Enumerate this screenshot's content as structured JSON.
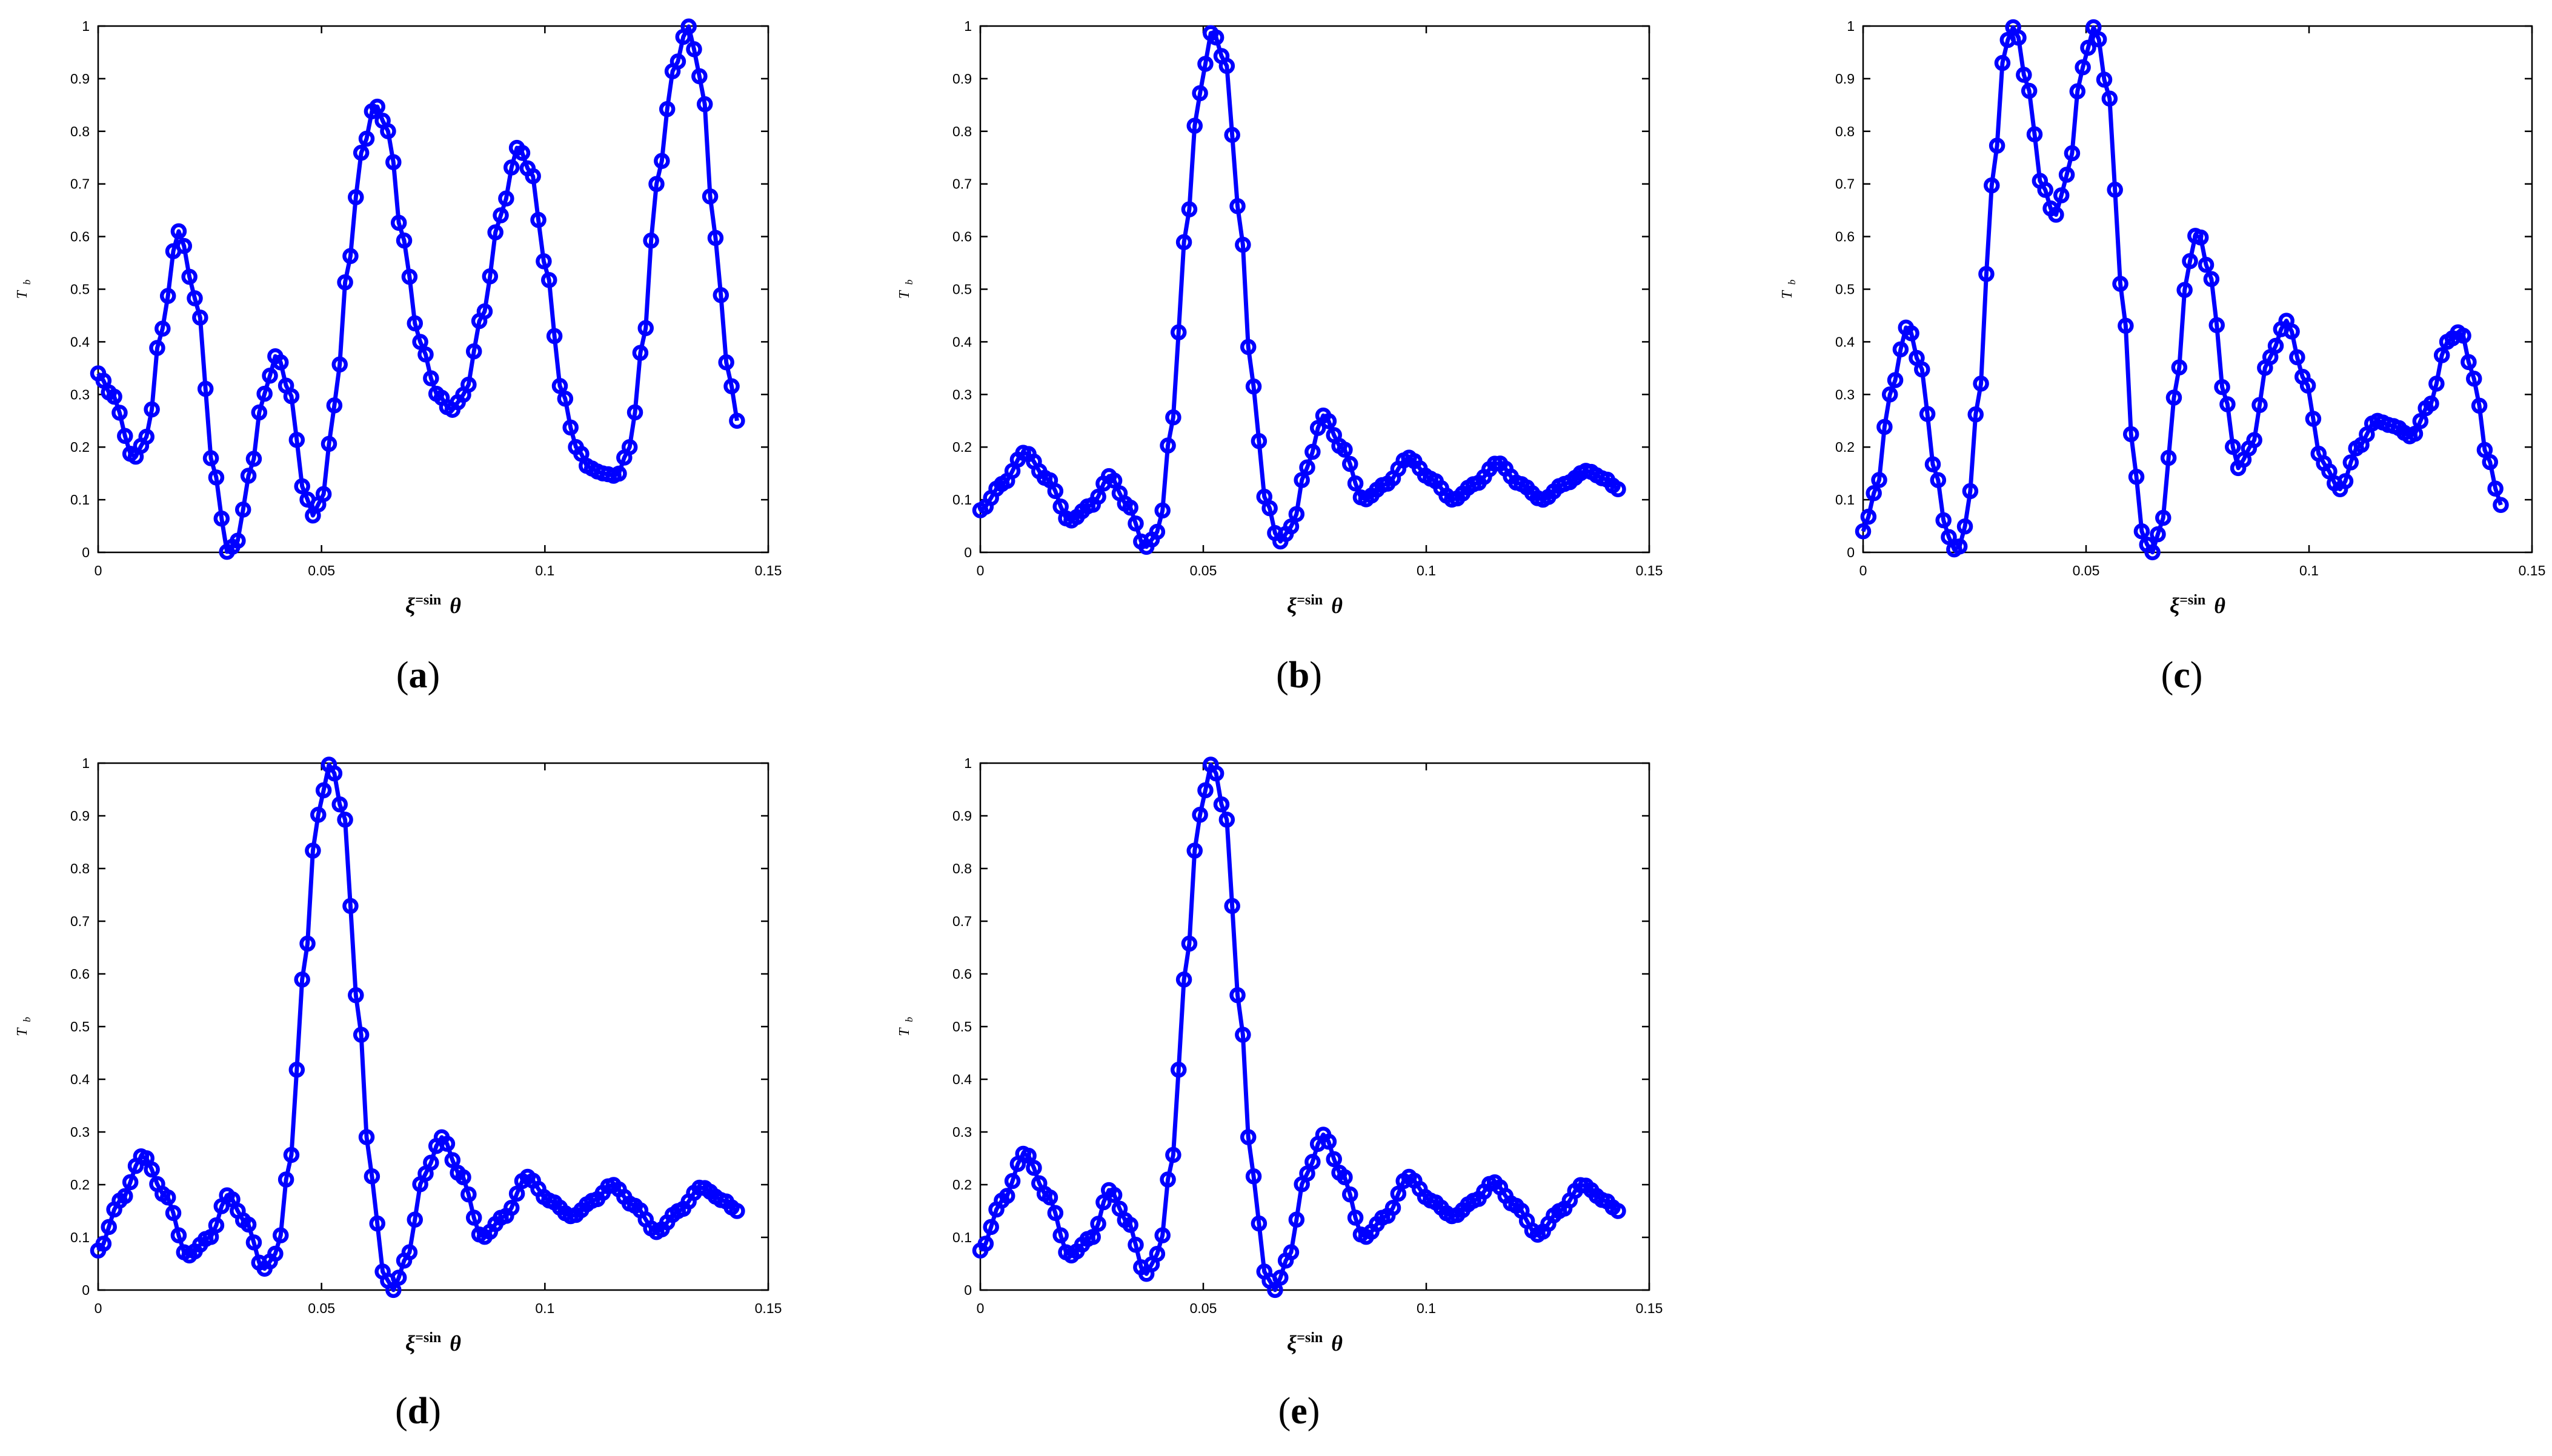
{
  "figure": {
    "panels": [
      {
        "label": "a",
        "xlabel": {
          "symbol": "ξ",
          "sup": "=sin",
          "var": "θ"
        },
        "ylabel": {
          "main": "T",
          "sub": "b"
        }
      },
      {
        "label": "b",
        "xlabel": {
          "symbol": "ξ",
          "sup": "=sin",
          "var": "θ"
        },
        "ylabel": {
          "main": "T",
          "sub": "b"
        }
      },
      {
        "label": "c",
        "xlabel": {
          "symbol": "ξ",
          "sup": "=sin",
          "var": "θ"
        },
        "ylabel": {
          "main": "T",
          "sub": "b"
        }
      },
      {
        "label": "d",
        "xlabel": {
          "symbol": "ξ",
          "sup": "=sin",
          "var": "θ"
        },
        "ylabel": {
          "main": "T",
          "sub": "b"
        }
      },
      {
        "label": "e",
        "xlabel": {
          "symbol": "ξ",
          "sup": "=sin",
          "var": "θ"
        },
        "ylabel": {
          "main": "T",
          "sub": "b"
        }
      }
    ]
  },
  "chart_data": [
    {
      "type": "line",
      "panel": "a",
      "marker": "circle",
      "color": "#0000ff",
      "xlim": [
        0,
        0.15
      ],
      "ylim": [
        0,
        1
      ],
      "xticks": [
        "0",
        "0.05",
        "0.1",
        "0.15"
      ],
      "yticks": [
        "0",
        "0.1",
        "0.2",
        "0.3",
        "0.4",
        "0.5",
        "0.6",
        "0.7",
        "0.8",
        "0.9",
        "1"
      ],
      "x_range": [
        0,
        0.143
      ],
      "points_count": 120,
      "keypoints": [
        [
          0,
          0.34
        ],
        [
          0.003,
          0.3
        ],
        [
          0.008,
          0.18
        ],
        [
          0.011,
          0.22
        ],
        [
          0.014,
          0.42
        ],
        [
          0.018,
          0.61
        ],
        [
          0.022,
          0.48
        ],
        [
          0.026,
          0.15
        ],
        [
          0.029,
          0.0
        ],
        [
          0.031,
          0.02
        ],
        [
          0.034,
          0.15
        ],
        [
          0.037,
          0.3
        ],
        [
          0.04,
          0.375
        ],
        [
          0.043,
          0.3
        ],
        [
          0.046,
          0.12
        ],
        [
          0.048,
          0.07
        ],
        [
          0.05,
          0.1
        ],
        [
          0.053,
          0.28
        ],
        [
          0.056,
          0.55
        ],
        [
          0.059,
          0.76
        ],
        [
          0.062,
          0.85
        ],
        [
          0.065,
          0.8
        ],
        [
          0.068,
          0.6
        ],
        [
          0.072,
          0.4
        ],
        [
          0.076,
          0.3
        ],
        [
          0.079,
          0.27
        ],
        [
          0.082,
          0.3
        ],
        [
          0.086,
          0.45
        ],
        [
          0.09,
          0.64
        ],
        [
          0.094,
          0.77
        ],
        [
          0.097,
          0.72
        ],
        [
          0.1,
          0.55
        ],
        [
          0.104,
          0.3
        ],
        [
          0.107,
          0.2
        ],
        [
          0.11,
          0.16
        ],
        [
          0.113,
          0.15
        ],
        [
          0.116,
          0.145
        ],
        [
          0.119,
          0.2
        ],
        [
          0.122,
          0.4
        ],
        [
          0.125,
          0.7
        ],
        [
          0.129,
          0.92
        ],
        [
          0.132,
          1.0
        ],
        [
          0.135,
          0.9
        ],
        [
          0.138,
          0.6
        ],
        [
          0.141,
          0.35
        ],
        [
          0.143,
          0.25
        ]
      ]
    },
    {
      "type": "line",
      "panel": "b",
      "marker": "circle",
      "color": "#0000ff",
      "xlim": [
        0,
        0.15
      ],
      "ylim": [
        0,
        1
      ],
      "xticks": [
        "0",
        "0.05",
        "0.1",
        "0.15"
      ],
      "yticks": [
        "0",
        "0.1",
        "0.2",
        "0.3",
        "0.4",
        "0.5",
        "0.6",
        "0.7",
        "0.8",
        "0.9",
        "1"
      ],
      "x_range": [
        0,
        0.143
      ],
      "points_count": 120,
      "keypoints": [
        [
          0,
          0.08
        ],
        [
          0.005,
          0.13
        ],
        [
          0.01,
          0.19
        ],
        [
          0.015,
          0.14
        ],
        [
          0.02,
          0.06
        ],
        [
          0.025,
          0.09
        ],
        [
          0.029,
          0.145
        ],
        [
          0.033,
          0.09
        ],
        [
          0.037,
          0.01
        ],
        [
          0.04,
          0.04
        ],
        [
          0.043,
          0.25
        ],
        [
          0.046,
          0.6
        ],
        [
          0.049,
          0.87
        ],
        [
          0.052,
          0.99
        ],
        [
          0.055,
          0.93
        ],
        [
          0.058,
          0.65
        ],
        [
          0.061,
          0.32
        ],
        [
          0.064,
          0.1
        ],
        [
          0.067,
          0.02
        ],
        [
          0.07,
          0.05
        ],
        [
          0.073,
          0.16
        ],
        [
          0.077,
          0.26
        ],
        [
          0.081,
          0.2
        ],
        [
          0.086,
          0.1
        ],
        [
          0.091,
          0.13
        ],
        [
          0.096,
          0.18
        ],
        [
          0.101,
          0.14
        ],
        [
          0.106,
          0.1
        ],
        [
          0.111,
          0.13
        ],
        [
          0.116,
          0.17
        ],
        [
          0.121,
          0.13
        ],
        [
          0.126,
          0.1
        ],
        [
          0.131,
          0.13
        ],
        [
          0.136,
          0.155
        ],
        [
          0.14,
          0.14
        ],
        [
          0.143,
          0.12
        ]
      ]
    },
    {
      "type": "line",
      "panel": "c",
      "marker": "circle",
      "color": "#0000ff",
      "xlim": [
        0,
        0.15
      ],
      "ylim": [
        0,
        1
      ],
      "xticks": [
        "0",
        "0.05",
        "0.1",
        "0.15"
      ],
      "yticks": [
        "0",
        "0.1",
        "0.2",
        "0.3",
        "0.4",
        "0.5",
        "0.6",
        "0.7",
        "0.8",
        "0.9",
        "1"
      ],
      "x_range": [
        0,
        0.143
      ],
      "points_count": 120,
      "keypoints": [
        [
          0,
          0.04
        ],
        [
          0.003,
          0.12
        ],
        [
          0.006,
          0.3
        ],
        [
          0.01,
          0.43
        ],
        [
          0.013,
          0.35
        ],
        [
          0.016,
          0.16
        ],
        [
          0.019,
          0.03
        ],
        [
          0.021,
          0.0
        ],
        [
          0.023,
          0.05
        ],
        [
          0.026,
          0.3
        ],
        [
          0.029,
          0.7
        ],
        [
          0.032,
          0.97
        ],
        [
          0.034,
          1.0
        ],
        [
          0.037,
          0.88
        ],
        [
          0.04,
          0.7
        ],
        [
          0.043,
          0.64
        ],
        [
          0.046,
          0.72
        ],
        [
          0.049,
          0.92
        ],
        [
          0.052,
          1.0
        ],
        [
          0.055,
          0.87
        ],
        [
          0.058,
          0.5
        ],
        [
          0.061,
          0.15
        ],
        [
          0.063,
          0.02
        ],
        [
          0.065,
          0.0
        ],
        [
          0.067,
          0.06
        ],
        [
          0.07,
          0.3
        ],
        [
          0.073,
          0.55
        ],
        [
          0.075,
          0.61
        ],
        [
          0.078,
          0.52
        ],
        [
          0.081,
          0.3
        ],
        [
          0.084,
          0.16
        ],
        [
          0.087,
          0.2
        ],
        [
          0.091,
          0.37
        ],
        [
          0.095,
          0.44
        ],
        [
          0.099,
          0.33
        ],
        [
          0.103,
          0.17
        ],
        [
          0.107,
          0.12
        ],
        [
          0.111,
          0.2
        ],
        [
          0.115,
          0.25
        ],
        [
          0.119,
          0.24
        ],
        [
          0.123,
          0.22
        ],
        [
          0.127,
          0.28
        ],
        [
          0.131,
          0.4
        ],
        [
          0.134,
          0.42
        ],
        [
          0.137,
          0.33
        ],
        [
          0.14,
          0.18
        ],
        [
          0.143,
          0.09
        ]
      ]
    },
    {
      "type": "line",
      "panel": "d",
      "marker": "circle",
      "color": "#0000ff",
      "xlim": [
        0,
        0.15
      ],
      "ylim": [
        0,
        1
      ],
      "xticks": [
        "0",
        "0.05",
        "0.1",
        "0.15"
      ],
      "yticks": [
        "0",
        "0.1",
        "0.2",
        "0.3",
        "0.4",
        "0.5",
        "0.6",
        "0.7",
        "0.8",
        "0.9",
        "1"
      ],
      "x_range": [
        0,
        0.143
      ],
      "points_count": 120,
      "keypoints": [
        [
          0,
          0.075
        ],
        [
          0.005,
          0.17
        ],
        [
          0.01,
          0.255
        ],
        [
          0.015,
          0.18
        ],
        [
          0.02,
          0.065
        ],
        [
          0.025,
          0.1
        ],
        [
          0.029,
          0.18
        ],
        [
          0.033,
          0.13
        ],
        [
          0.037,
          0.04
        ],
        [
          0.04,
          0.07
        ],
        [
          0.043,
          0.25
        ],
        [
          0.046,
          0.6
        ],
        [
          0.049,
          0.9
        ],
        [
          0.052,
          1.0
        ],
        [
          0.055,
          0.9
        ],
        [
          0.058,
          0.55
        ],
        [
          0.061,
          0.22
        ],
        [
          0.064,
          0.03
        ],
        [
          0.066,
          0.0
        ],
        [
          0.069,
          0.06
        ],
        [
          0.073,
          0.22
        ],
        [
          0.077,
          0.29
        ],
        [
          0.081,
          0.22
        ],
        [
          0.086,
          0.1
        ],
        [
          0.091,
          0.14
        ],
        [
          0.096,
          0.215
        ],
        [
          0.101,
          0.17
        ],
        [
          0.106,
          0.14
        ],
        [
          0.111,
          0.17
        ],
        [
          0.115,
          0.2
        ],
        [
          0.12,
          0.16
        ],
        [
          0.125,
          0.11
        ],
        [
          0.13,
          0.15
        ],
        [
          0.135,
          0.195
        ],
        [
          0.14,
          0.17
        ],
        [
          0.143,
          0.15
        ]
      ]
    },
    {
      "type": "line",
      "panel": "e",
      "marker": "circle",
      "color": "#0000ff",
      "xlim": [
        0,
        0.15
      ],
      "ylim": [
        0,
        1
      ],
      "xticks": [
        "0",
        "0.05",
        "0.1",
        "0.15"
      ],
      "yticks": [
        "0",
        "0.1",
        "0.2",
        "0.3",
        "0.4",
        "0.5",
        "0.6",
        "0.7",
        "0.8",
        "0.9",
        "1"
      ],
      "x_range": [
        0,
        0.143
      ],
      "points_count": 120,
      "keypoints": [
        [
          0,
          0.075
        ],
        [
          0.005,
          0.17
        ],
        [
          0.01,
          0.26
        ],
        [
          0.015,
          0.18
        ],
        [
          0.02,
          0.065
        ],
        [
          0.025,
          0.1
        ],
        [
          0.029,
          0.19
        ],
        [
          0.033,
          0.13
        ],
        [
          0.037,
          0.03
        ],
        [
          0.04,
          0.07
        ],
        [
          0.043,
          0.25
        ],
        [
          0.046,
          0.6
        ],
        [
          0.049,
          0.9
        ],
        [
          0.052,
          1.0
        ],
        [
          0.055,
          0.9
        ],
        [
          0.058,
          0.55
        ],
        [
          0.061,
          0.22
        ],
        [
          0.064,
          0.03
        ],
        [
          0.066,
          0.0
        ],
        [
          0.069,
          0.06
        ],
        [
          0.073,
          0.22
        ],
        [
          0.077,
          0.295
        ],
        [
          0.081,
          0.22
        ],
        [
          0.086,
          0.1
        ],
        [
          0.091,
          0.14
        ],
        [
          0.096,
          0.215
        ],
        [
          0.101,
          0.17
        ],
        [
          0.106,
          0.14
        ],
        [
          0.111,
          0.17
        ],
        [
          0.115,
          0.205
        ],
        [
          0.12,
          0.16
        ],
        [
          0.125,
          0.105
        ],
        [
          0.13,
          0.15
        ],
        [
          0.135,
          0.2
        ],
        [
          0.14,
          0.17
        ],
        [
          0.143,
          0.15
        ]
      ]
    }
  ]
}
